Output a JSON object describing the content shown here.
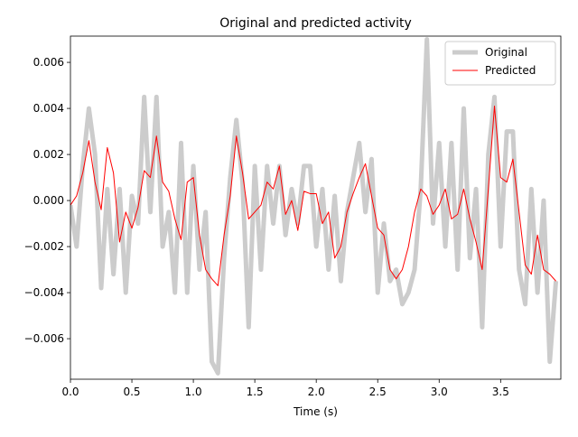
{
  "chart_data": {
    "type": "line",
    "title": "Original and predicted activity",
    "x_label": "Time (s)",
    "x": [
      0,
      0.05,
      0.1,
      0.15,
      0.2,
      0.25,
      0.3,
      0.35,
      0.4,
      0.45,
      0.5,
      0.55,
      0.6,
      0.65,
      0.7,
      0.75,
      0.8,
      0.85,
      0.9,
      0.95,
      1.0,
      1.05,
      1.1,
      1.15,
      1.2,
      1.25,
      1.3,
      1.35,
      1.4,
      1.45,
      1.5,
      1.55,
      1.6,
      1.65,
      1.7,
      1.75,
      1.8,
      1.85,
      1.9,
      1.95,
      2.0,
      2.05,
      2.1,
      2.15,
      2.2,
      2.25,
      2.3,
      2.35,
      2.4,
      2.45,
      2.5,
      2.55,
      2.6,
      2.65,
      2.7,
      2.75,
      2.8,
      2.85,
      2.9,
      2.95,
      3.0,
      3.05,
      3.1,
      3.15,
      3.2,
      3.25,
      3.3,
      3.35,
      3.4,
      3.45,
      3.5,
      3.55,
      3.6,
      3.65,
      3.7,
      3.75,
      3.8,
      3.85,
      3.9,
      3.95
    ],
    "series": [
      {
        "name": "Original",
        "color": "#cccccc",
        "values": [
          -0.0002,
          -0.002,
          0.0015,
          0.004,
          0.002,
          -0.0038,
          0.0005,
          -0.0032,
          0.0005,
          -0.004,
          0.0002,
          -0.001,
          0.0045,
          -0.0005,
          0.0045,
          -0.002,
          -0.0005,
          -0.004,
          0.0025,
          -0.004,
          0.0015,
          -0.003,
          -0.0005,
          -0.007,
          -0.0075,
          -0.0025,
          0.001,
          0.0035,
          0.0008,
          -0.0055,
          0.0015,
          -0.003,
          0.0015,
          -0.001,
          0.0015,
          -0.0015,
          0.0005,
          -0.001,
          0.0015,
          0.0015,
          -0.002,
          0.0005,
          -0.003,
          0.0002,
          -0.0035,
          -0.0005,
          0.001,
          0.0025,
          -0.0005,
          0.0018,
          -0.004,
          -0.001,
          -0.0035,
          -0.003,
          -0.0045,
          -0.004,
          -0.003,
          0.0005,
          0.007,
          -0.001,
          0.0025,
          -0.002,
          0.0025,
          -0.003,
          0.004,
          -0.0025,
          0.0005,
          -0.0055,
          0.002,
          0.0045,
          -0.002,
          0.003,
          0.003,
          -0.003,
          -0.0045,
          0.0005,
          -0.004,
          0.0,
          -0.007,
          -0.0035
        ]
      },
      {
        "name": "Predicted",
        "color": "#ff0000",
        "values": [
          -0.0002,
          0.0002,
          0.0012,
          0.0026,
          0.0008,
          -0.0004,
          0.0023,
          0.0012,
          -0.0018,
          -0.0005,
          -0.0012,
          -0.0003,
          0.0013,
          0.001,
          0.0028,
          0.0008,
          0.0004,
          -0.0008,
          -0.0017,
          0.0008,
          0.001,
          -0.0015,
          -0.003,
          -0.0034,
          -0.0037,
          -0.0015,
          0.0002,
          0.0028,
          0.0012,
          -0.0008,
          -0.0005,
          -0.0002,
          0.0008,
          0.0005,
          0.0015,
          -0.0006,
          0.0,
          -0.0013,
          0.0004,
          0.0003,
          0.0003,
          -0.001,
          -0.0005,
          -0.0025,
          -0.002,
          -0.0005,
          0.0003,
          0.001,
          0.0016,
          0.0002,
          -0.0012,
          -0.0015,
          -0.003,
          -0.0034,
          -0.003,
          -0.002,
          -0.0005,
          0.0005,
          0.0002,
          -0.0006,
          -0.0002,
          0.0005,
          -0.0008,
          -0.0006,
          0.0005,
          -0.0008,
          -0.0018,
          -0.003,
          0.0005,
          0.0041,
          0.001,
          0.0008,
          0.0018,
          -0.0005,
          -0.0028,
          -0.0032,
          -0.0015,
          -0.003,
          -0.0032,
          -0.0035
        ]
      }
    ],
    "xlim": [
      0,
      3.99
    ],
    "ylim": [
      -0.00776,
      0.00714
    ],
    "xticks": [
      {
        "value": 0,
        "label": "0.0"
      },
      0.5,
      {
        "value": 1,
        "label": "1.0"
      },
      1.5,
      {
        "value": 2,
        "label": "2.0"
      },
      2.5,
      {
        "value": 3,
        "label": "3.0"
      },
      3.5
    ],
    "yticks": [
      {
        "value": -0.006,
        "label": "−0.006"
      },
      {
        "value": -0.004,
        "label": "−0.004"
      },
      {
        "value": -0.002,
        "label": "−0.002"
      },
      {
        "value": 0,
        "label": "0.000"
      },
      0.002,
      0.004,
      0.006
    ],
    "legend": "upper right",
    "line_widths": [
      5,
      1
    ]
  }
}
